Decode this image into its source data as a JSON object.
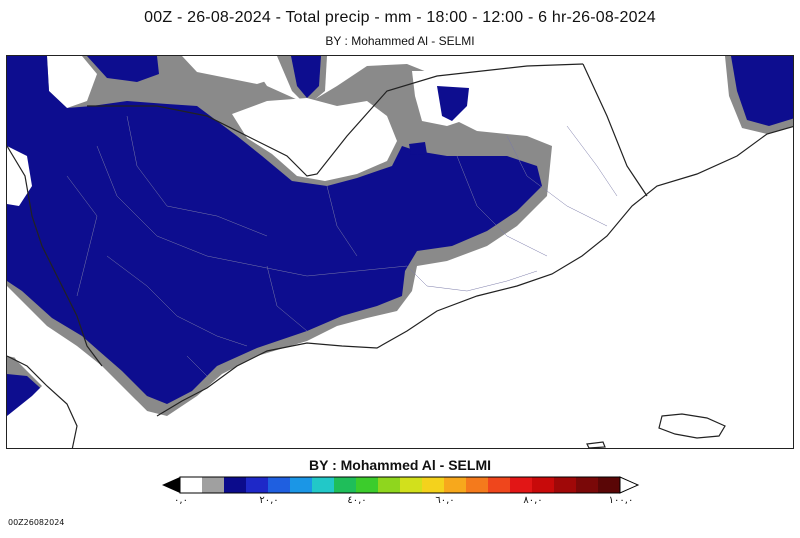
{
  "header": {
    "title": "00Z - 26-08-2024 - Total precip - mm -  18:00 - 12:00 - 6 hr-26-08-2024",
    "subtitle": "BY : Mohammed Al - SELMI"
  },
  "legend": {
    "title": "BY : Mohammed Al - SELMI",
    "ticks": [
      "٠,٠",
      "٢٠,٠",
      "٤٠,٠",
      "٦٠,٠",
      "٨٠,٠",
      "١٠٠,٠"
    ],
    "colors": [
      "#ffffff",
      "#a0a0a0",
      "#0b0b8c",
      "#1e28c8",
      "#1f5fe0",
      "#1b96e6",
      "#22c8c8",
      "#1fbe5a",
      "#3ccc2c",
      "#8fd61e",
      "#d2e01c",
      "#f4d21c",
      "#f7a81c",
      "#f47a1c",
      "#ef461c",
      "#e21616",
      "#c80a0a",
      "#a00808",
      "#7a0808",
      "#5a0606"
    ],
    "left_arrow_color": "#000000",
    "right_arrow_color": "#ffffff"
  },
  "map": {
    "colors": {
      "heavy": "#0d0d8f",
      "halo": "#8a8a8a",
      "land": "#ffffff",
      "border": "#222222"
    }
  },
  "footer": {
    "code": "00Z26082024"
  }
}
